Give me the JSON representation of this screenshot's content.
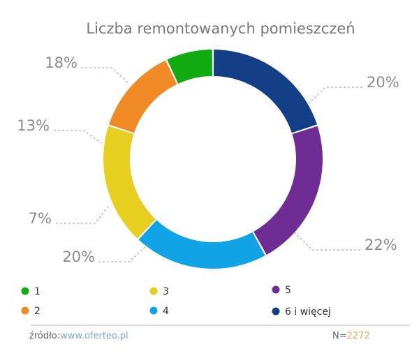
{
  "chart_data": {
    "type": "pie",
    "title": "Liczba remontowanych pomieszczeń",
    "legend_position": "bottom",
    "slices": [
      {
        "name": "1",
        "value": 7,
        "label": "7%",
        "color": "#11aa11"
      },
      {
        "name": "2",
        "value": 13,
        "label": "13%",
        "color": "#f08a24"
      },
      {
        "name": "3",
        "value": 18,
        "label": "18%",
        "color": "#e6cf1f"
      },
      {
        "name": "4",
        "value": 20,
        "label": "20%",
        "color": "#10a4e6"
      },
      {
        "name": "5",
        "value": 22,
        "label": "22%",
        "color": "#6f2c95"
      },
      {
        "name": "6 i więcej",
        "value": 20,
        "label": "20%",
        "color": "#123f86"
      }
    ]
  },
  "footer": {
    "source_prefix": "źródło:",
    "source_link": "www.oferteo.pl",
    "n_prefix": "N=",
    "n_value": "2272"
  }
}
